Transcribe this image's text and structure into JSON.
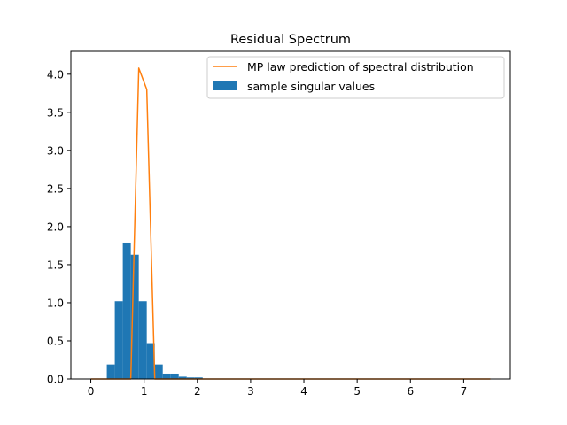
{
  "chart_data": {
    "type": "bar",
    "title": "Residual Spectrum",
    "xlabel": "",
    "ylabel": "",
    "xlim": [
      -0.375,
      7.875
    ],
    "ylim": [
      0,
      4.3
    ],
    "xticks": [
      0,
      1,
      2,
      3,
      4,
      5,
      6,
      7
    ],
    "yticks": [
      0.0,
      0.5,
      1.0,
      1.5,
      2.0,
      2.5,
      3.0,
      3.5,
      4.0
    ],
    "grid": false,
    "legend_position": "top-right",
    "series": [
      {
        "name": "MP law prediction of spectral distribution",
        "kind": "line",
        "color": "#ff7f0e",
        "x": [
          0.0,
          0.15,
          0.3,
          0.45,
          0.6,
          0.75,
          0.9,
          1.05,
          1.2,
          1.35,
          1.5,
          2.0,
          3.0,
          4.0,
          5.0,
          6.0,
          7.0,
          7.5
        ],
        "y": [
          0.0,
          0.0,
          0.0,
          0.0,
          0.0,
          0.0,
          4.08,
          3.8,
          0.0,
          0.0,
          0.0,
          0.0,
          0.0,
          0.0,
          0.0,
          0.0,
          0.0,
          0.0
        ]
      },
      {
        "name": "sample singular values",
        "kind": "histogram",
        "color": "#1f77b4",
        "bin_edges": [
          0.3,
          0.45,
          0.6,
          0.75,
          0.9,
          1.05,
          1.2,
          1.35,
          1.5,
          1.65,
          1.8,
          1.95,
          2.1
        ],
        "values": [
          0.19,
          1.02,
          1.79,
          1.63,
          1.02,
          0.47,
          0.19,
          0.07,
          0.07,
          0.03,
          0.02,
          0.02
        ]
      }
    ]
  }
}
